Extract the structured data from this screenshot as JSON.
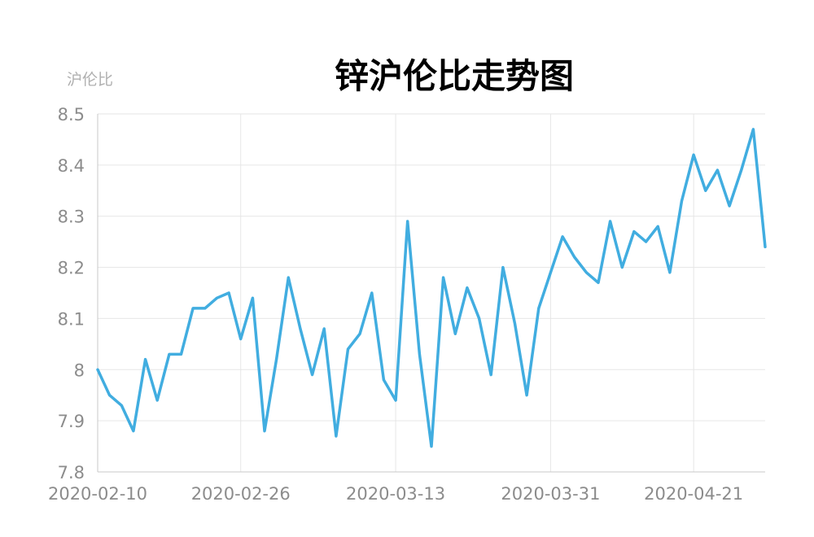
{
  "chart_data": {
    "type": "line",
    "title": "锌沪伦比走势图",
    "ylabel": "沪伦比",
    "xlabel": "",
    "ylim": [
      7.8,
      8.5
    ],
    "yticks": [
      "8.5",
      "8.4",
      "8.3",
      "8.2",
      "8.1",
      "8",
      "7.9",
      "7.8"
    ],
    "xticks": [
      "2020-02-10",
      "2020-02-26",
      "2020-03-13",
      "2020-03-31",
      "2020-04-21"
    ],
    "grid": true,
    "color": "#41ade0",
    "series": [
      {
        "values": [
          8.0,
          7.95,
          7.93,
          7.88,
          8.02,
          7.94,
          8.03,
          8.03,
          8.12,
          8.12,
          8.14,
          8.15,
          8.06,
          8.14,
          7.88,
          8.02,
          8.18,
          8.08,
          7.99,
          8.08,
          7.87,
          8.04,
          8.07,
          8.15,
          7.98,
          7.94,
          8.29,
          8.03,
          7.85,
          8.18,
          8.07,
          8.16,
          8.1,
          7.99,
          8.2,
          8.09,
          7.95,
          8.12,
          8.19,
          8.26,
          8.22,
          8.19,
          8.17,
          8.29,
          8.2,
          8.27,
          8.25,
          8.28,
          8.19,
          8.33,
          8.42,
          8.35,
          8.39,
          8.32,
          8.39,
          8.47,
          8.24
        ]
      }
    ]
  }
}
